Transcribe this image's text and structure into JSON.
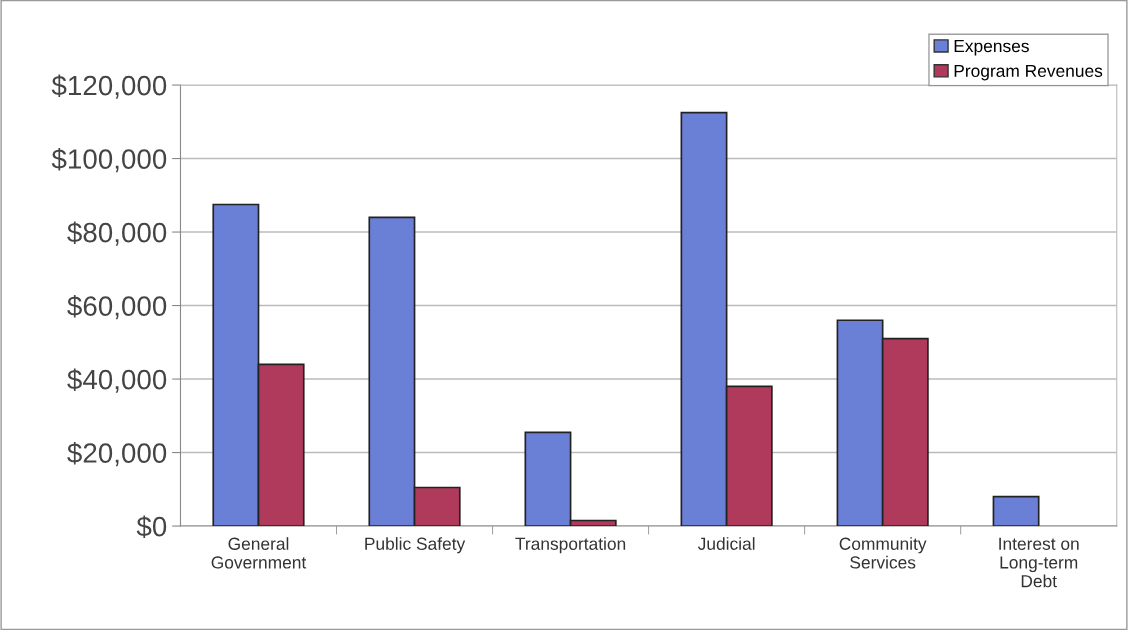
{
  "chart_data": {
    "type": "bar",
    "categories": [
      "General\nGovernment",
      "Public Safety",
      "Transportation",
      "Judicial",
      "Community\nServices",
      "Interest on\nLong-term\nDebt"
    ],
    "series": [
      {
        "name": "Expenses",
        "color": "#6a7fd6",
        "values": [
          87500,
          84000,
          25500,
          112500,
          56000,
          8000
        ]
      },
      {
        "name": "Program Revenues",
        "color": "#b03a5c",
        "values": [
          44000,
          10500,
          1500,
          38000,
          51000,
          null
        ]
      }
    ],
    "ylim": [
      0,
      120000
    ],
    "yticks": [
      {
        "value": 0,
        "label": "$0"
      },
      {
        "value": 20000,
        "label": "$20,000"
      },
      {
        "value": 40000,
        "label": "$40,000"
      },
      {
        "value": 60000,
        "label": "$60,000"
      },
      {
        "value": 80000,
        "label": "$80,000"
      },
      {
        "value": 100000,
        "label": "$100,000"
      },
      {
        "value": 120000,
        "label": "$120,000"
      }
    ],
    "grid": "y",
    "legend": "top right"
  }
}
